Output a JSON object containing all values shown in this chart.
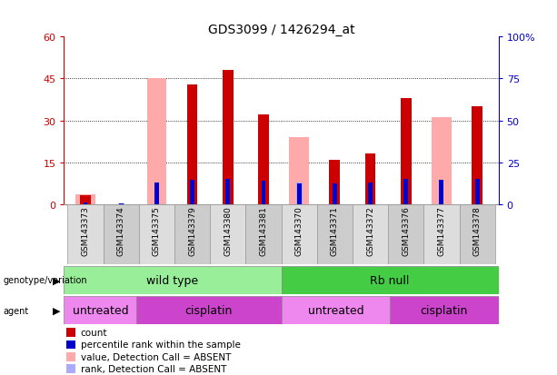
{
  "title": "GDS3099 / 1426294_at",
  "samples": [
    "GSM143373",
    "GSM143374",
    "GSM143375",
    "GSM143379",
    "GSM143380",
    "GSM143381",
    "GSM143370",
    "GSM143371",
    "GSM143372",
    "GSM143376",
    "GSM143377",
    "GSM143378"
  ],
  "count_values": [
    3.0,
    0.0,
    0.0,
    43.0,
    48.0,
    32.0,
    0.0,
    16.0,
    18.0,
    38.0,
    0.0,
    35.0
  ],
  "rank_values": [
    1.0,
    0.5,
    13.0,
    14.5,
    15.0,
    14.0,
    12.5,
    12.5,
    13.0,
    15.0,
    14.5,
    15.0
  ],
  "absent_value": [
    3.5,
    0.0,
    45.0,
    0.0,
    0.0,
    0.0,
    24.0,
    0.0,
    0.0,
    0.0,
    31.0,
    0.0
  ],
  "absent_rank": [
    1.5,
    0.5,
    0.0,
    0.0,
    0.0,
    0.0,
    13.0,
    0.0,
    0.0,
    0.0,
    0.0,
    0.0
  ],
  "count_color": "#cc0000",
  "rank_color": "#0000cc",
  "absent_value_color": "#ffaaaa",
  "absent_rank_color": "#aaaaff",
  "ylim_left": [
    0,
    60
  ],
  "ylim_right": [
    0,
    100
  ],
  "yticks_left": [
    0,
    15,
    30,
    45,
    60
  ],
  "yticks_right": [
    0,
    25,
    50,
    75,
    100
  ],
  "groups": [
    {
      "label": "wild type",
      "color": "#99ee99",
      "start": 0,
      "end": 6
    },
    {
      "label": "Rb null",
      "color": "#44cc44",
      "start": 6,
      "end": 12
    }
  ],
  "agents": [
    {
      "label": "untreated",
      "color": "#ee88ee",
      "start": 0,
      "end": 2
    },
    {
      "label": "cisplatin",
      "color": "#cc44cc",
      "start": 2,
      "end": 6
    },
    {
      "label": "untreated",
      "color": "#ee88ee",
      "start": 6,
      "end": 9
    },
    {
      "label": "cisplatin",
      "color": "#cc44cc",
      "start": 9,
      "end": 12
    }
  ],
  "legend_items": [
    {
      "label": "count",
      "color": "#cc0000"
    },
    {
      "label": "percentile rank within the sample",
      "color": "#0000cc"
    },
    {
      "label": "value, Detection Call = ABSENT",
      "color": "#ffaaaa"
    },
    {
      "label": "rank, Detection Call = ABSENT",
      "color": "#aaaaff"
    }
  ],
  "bg_color": "#ffffff",
  "axis_left_color": "#cc0000",
  "axis_right_color": "#0000cc"
}
